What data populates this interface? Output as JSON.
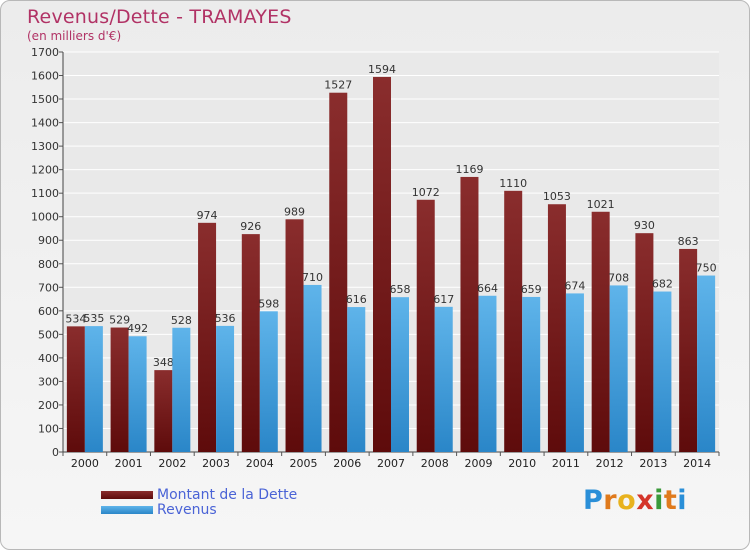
{
  "title": "Revenus/Dette - TRAMAYES",
  "subtitle": "(en milliers d'€)",
  "logo_text": "Proxiti",
  "colors": {
    "title": "#b13265",
    "dette_top": "#8a2d2d",
    "dette_bottom": "#5e0b0b",
    "revenus_top": "#5fb4ea",
    "revenus_bottom": "#2a86c8",
    "legend_text": "#4a63d6",
    "grid": "#ffffff"
  },
  "chart_data": {
    "type": "bar",
    "categories": [
      "2000",
      "2001",
      "2002",
      "2003",
      "2004",
      "2005",
      "2006",
      "2007",
      "2008",
      "2009",
      "2010",
      "2011",
      "2012",
      "2013",
      "2014"
    ],
    "series": [
      {
        "name": "Montant de la Dette",
        "values": [
          534,
          529,
          348,
          974,
          926,
          989,
          1527,
          1594,
          1072,
          1169,
          1110,
          1053,
          1021,
          930,
          863
        ]
      },
      {
        "name": "Revenus",
        "values": [
          535,
          492,
          528,
          536,
          598,
          710,
          616,
          658,
          617,
          664,
          659,
          674,
          708,
          682,
          750
        ]
      }
    ],
    "ylim": [
      0,
      1700
    ],
    "ytick_step": 100,
    "grid": true,
    "legend_position": "bottom-left"
  }
}
